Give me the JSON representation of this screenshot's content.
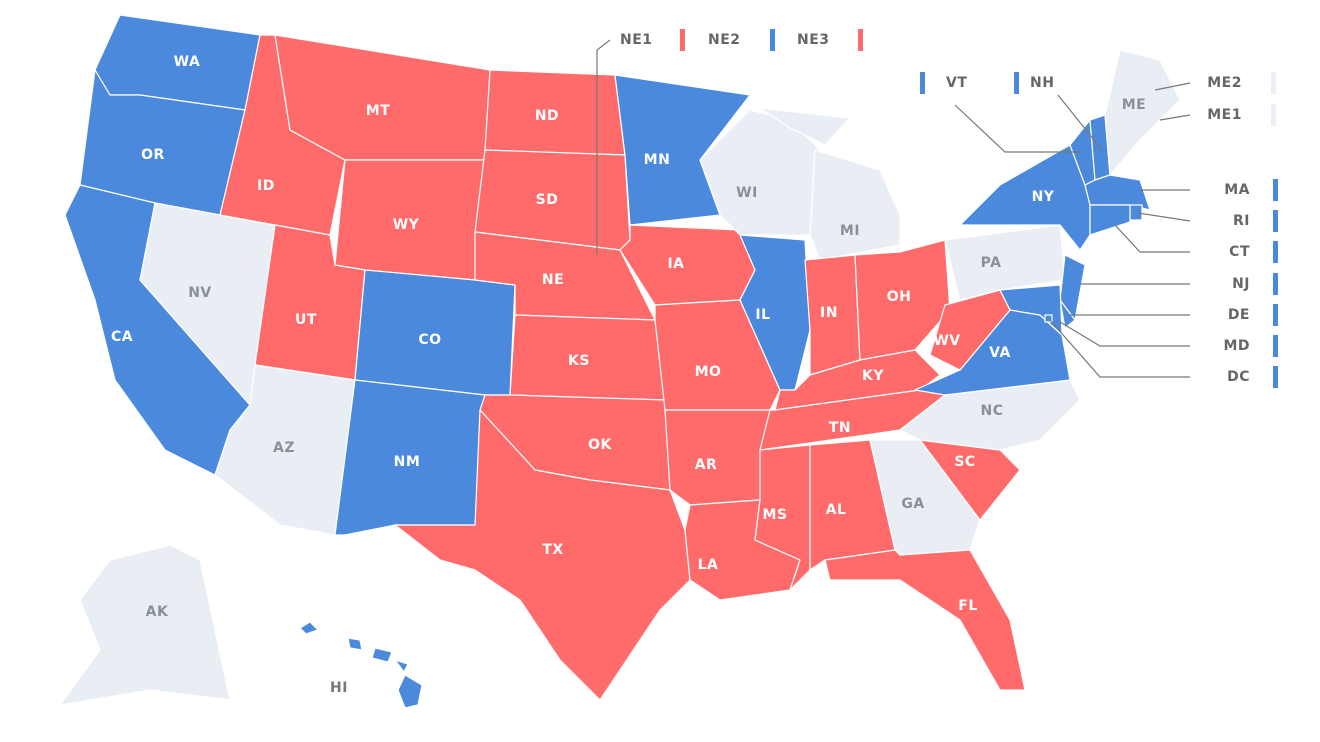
{
  "map": {
    "states": [
      {
        "label": "WA",
        "color": "#4a89dc"
      },
      {
        "label": "OR",
        "color": "#4a89dc"
      },
      {
        "label": "CA",
        "color": "#4a89dc"
      },
      {
        "label": "NV",
        "color": "#e9eef4"
      },
      {
        "label": "ID",
        "color": "#ff6b6b"
      },
      {
        "label": "MT",
        "color": "#ff6b6b"
      },
      {
        "label": "WY",
        "color": "#ff6b6b"
      },
      {
        "label": "UT",
        "color": "#ff6b6b"
      },
      {
        "label": "CO",
        "color": "#4a89dc"
      },
      {
        "label": "AZ",
        "color": "#e9eef4"
      },
      {
        "label": "NM",
        "color": "#4a89dc"
      },
      {
        "label": "ND",
        "color": "#ff6b6b"
      },
      {
        "label": "SD",
        "color": "#ff6b6b"
      },
      {
        "label": "NE",
        "color": "#ff6b6b"
      },
      {
        "label": "KS",
        "color": "#ff6b6b"
      },
      {
        "label": "OK",
        "color": "#ff6b6b"
      },
      {
        "label": "TX",
        "color": "#ff6b6b"
      },
      {
        "label": "MN",
        "color": "#4a89dc"
      },
      {
        "label": "IA",
        "color": "#ff6b6b"
      },
      {
        "label": "MO",
        "color": "#ff6b6b"
      },
      {
        "label": "AR",
        "color": "#ff6b6b"
      },
      {
        "label": "LA",
        "color": "#ff6b6b"
      },
      {
        "label": "WI",
        "color": "#e9eef4"
      },
      {
        "label": "MI",
        "color": "#e9eef4"
      },
      {
        "label": "IL",
        "color": "#4a89dc"
      },
      {
        "label": "IN",
        "color": "#ff6b6b"
      },
      {
        "label": "OH",
        "color": "#ff6b6b"
      },
      {
        "label": "KY",
        "color": "#ff6b6b"
      },
      {
        "label": "TN",
        "color": "#ff6b6b"
      },
      {
        "label": "MS",
        "color": "#ff6b6b"
      },
      {
        "label": "AL",
        "color": "#ff6b6b"
      },
      {
        "label": "GA",
        "color": "#e9eef4"
      },
      {
        "label": "FL",
        "color": "#ff6b6b"
      },
      {
        "label": "SC",
        "color": "#ff6b6b"
      },
      {
        "label": "NC",
        "color": "#e9eef4"
      },
      {
        "label": "VA",
        "color": "#4a89dc"
      },
      {
        "label": "WV",
        "color": "#ff6b6b"
      },
      {
        "label": "PA",
        "color": "#e9eef4"
      },
      {
        "label": "NY",
        "color": "#4a89dc"
      },
      {
        "label": "NJ",
        "color": "#4a89dc"
      },
      {
        "label": "DE",
        "color": "#4a89dc"
      },
      {
        "label": "MD",
        "color": "#4a89dc"
      },
      {
        "label": "DC",
        "color": "#4a89dc"
      },
      {
        "label": "VT",
        "color": "#4a89dc"
      },
      {
        "label": "NH",
        "color": "#4a89dc"
      },
      {
        "label": "MA",
        "color": "#4a89dc"
      },
      {
        "label": "RI",
        "color": "#4a89dc"
      },
      {
        "label": "CT",
        "color": "#4a89dc"
      },
      {
        "label": "ME",
        "color": "#e9eef4"
      },
      {
        "label": "AK",
        "color": "#e9eef4"
      },
      {
        "label": "HI",
        "color": "#4a89dc"
      }
    ],
    "districts": [
      {
        "label": "NE1",
        "color": "#ff6b6b"
      },
      {
        "label": "NE2",
        "color": "#4a89dc"
      },
      {
        "label": "NE3",
        "color": "#ff6b6b"
      },
      {
        "label": "ME2",
        "color": "#e9eef4"
      },
      {
        "label": "ME1",
        "color": "#e9eef4"
      }
    ]
  }
}
